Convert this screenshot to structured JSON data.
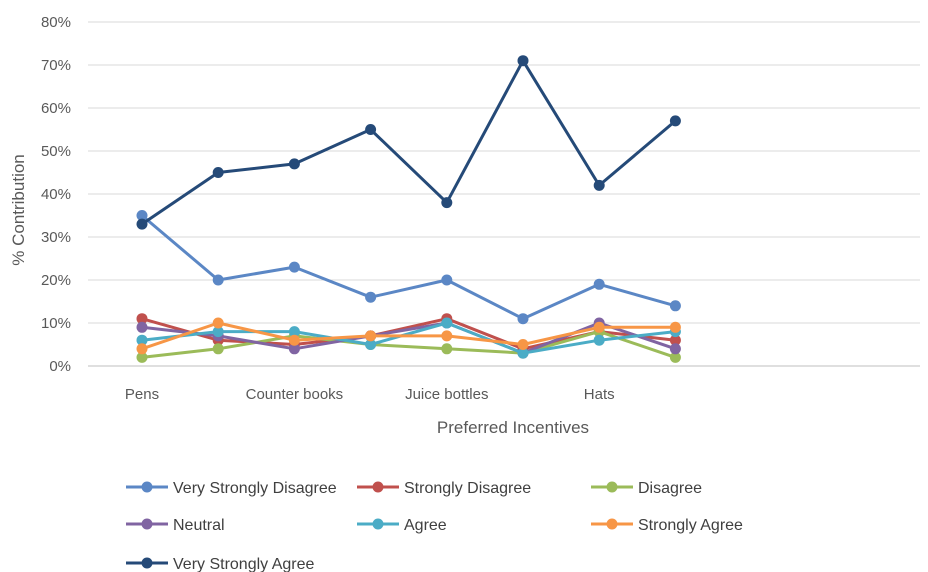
{
  "chart_data": {
    "type": "line",
    "xlabel": "Preferred Incentives",
    "ylabel": "% Contribution",
    "ylim": [
      0,
      80
    ],
    "y_ticks": [
      "0%",
      "10%",
      "20%",
      "30%",
      "40%",
      "50%",
      "60%",
      "70%",
      "80%"
    ],
    "categories": [
      "Pens",
      "",
      "Counter books",
      "",
      "Juice bottles",
      "",
      "Hats",
      ""
    ],
    "grid": true,
    "legend_position": "bottom",
    "series": [
      {
        "name": "Very Strongly Disagree",
        "color": "#5B87C5",
        "values": [
          35,
          20,
          23,
          16,
          20,
          11,
          19,
          14
        ]
      },
      {
        "name": "Strongly Disagree",
        "color": "#C0504D",
        "values": [
          11,
          6,
          5,
          7,
          11,
          4,
          8,
          6
        ]
      },
      {
        "name": "Disagree",
        "color": "#9BBB59",
        "values": [
          2,
          4,
          7,
          5,
          4,
          3,
          8,
          2
        ]
      },
      {
        "name": "Neutral",
        "color": "#8064A2",
        "values": [
          9,
          7,
          4,
          7,
          10,
          3,
          10,
          4
        ]
      },
      {
        "name": "Agree",
        "color": "#4BACC6",
        "values": [
          6,
          8,
          8,
          5,
          10,
          3,
          6,
          8
        ]
      },
      {
        "name": "Strongly Agree",
        "color": "#F79646",
        "values": [
          4,
          10,
          6,
          7,
          7,
          5,
          9,
          9
        ]
      },
      {
        "name": "Very Strongly Agree",
        "color": "#254A78",
        "values": [
          33,
          45,
          47,
          55,
          38,
          71,
          42,
          57
        ]
      }
    ]
  }
}
